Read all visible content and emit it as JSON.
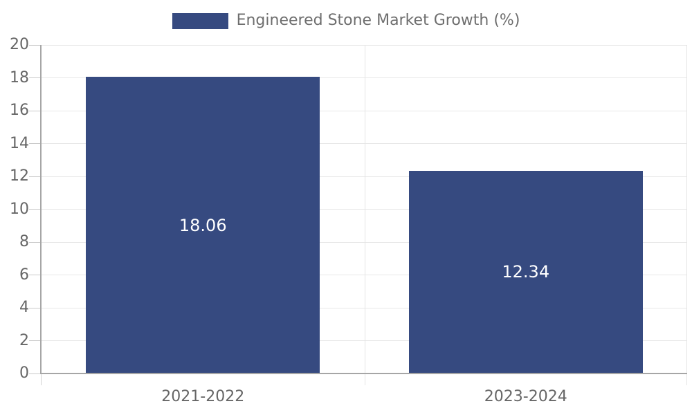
{
  "legend": {
    "label": "Engineered Stone Market Growth (%)"
  },
  "chart_data": {
    "type": "bar",
    "title": "Engineered Stone Market Growth (%)",
    "categories": [
      "2021-2022",
      "2023-2024"
    ],
    "values": [
      18.06,
      12.34
    ],
    "bar_value_labels": [
      "18.06",
      "12.34"
    ],
    "xlabel": "",
    "ylabel": "",
    "ylim": [
      0,
      20
    ],
    "ytick_step": 2,
    "yticks": [
      0,
      2,
      4,
      6,
      8,
      10,
      12,
      14,
      16,
      18,
      20
    ],
    "grid": true,
    "legend_position": "top-center",
    "colors": {
      "bar": "#364a80",
      "bar_label_text": "#ffffff",
      "axis_text": "#666666",
      "legend_text": "#6e6e6e",
      "gridline": "#e7e7e7",
      "tick": "#c9c9c9",
      "axis_line": "#a6a6a6",
      "background": "#ffffff"
    }
  }
}
